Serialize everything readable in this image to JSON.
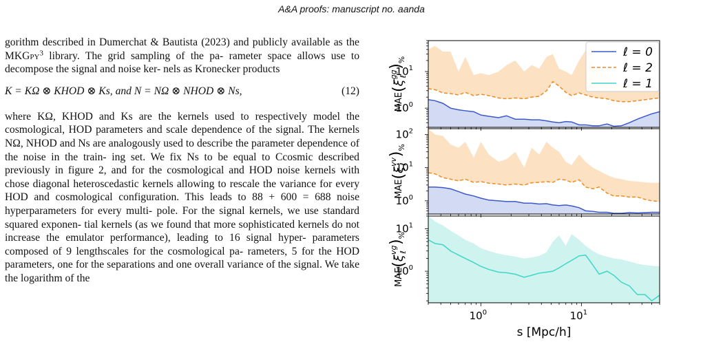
{
  "header": {
    "title": "A&A proofs:",
    "subtitle": "manuscript no. aanda"
  },
  "paragraph1": {
    "line1": "gorithm described in Dumerchat & Bautista (2023) and publicly",
    "line2_pre": "available as the ",
    "lib_name": "MKGpy",
    "footnote": "3",
    "line2_post": " library. The grid sampling of the pa-",
    "line3": "rameter space allows use to decompose the signal and noise ker-",
    "line4": "nels as Kronecker products"
  },
  "equation": {
    "text": "K = KΩ ⊗ KHOD ⊗ Ks,  and  N = NΩ ⊗ NHOD ⊗ Ns,",
    "number": "(12)"
  },
  "paragraph2": [
    "where KΩ, KHOD and Ks are the kernels used to respectively",
    "model the cosmological, HOD parameters and scale dependence",
    "of the signal. The kernels NΩ, NHOD and Ns are analogously used",
    "to describe the parameter dependence of the noise in the train-",
    "ing set. We fix Ns to be equal to Ccosmic described previously in",
    "figure 2, and for the cosmological and HOD noise kernels with",
    "chose diagonal heteroscedastic kernels allowing to rescale the",
    "variance for every HOD and cosmological configuration. This",
    "leads to 88 + 600 = 688 noise hyperparameters for every multi-",
    "pole. For the signal kernels, we use standard squared exponen-",
    "tial kernels (as we found that more sophisticated kernels do not",
    "increase the emulator performance), leading to 16 signal hyper-",
    "parameters composed of 9 lengthscales for the cosmological pa-",
    "rameters, 5 for the HOD parameters, one for the separations and",
    "one overall variance of the signal. We take the logarithm of the"
  ],
  "chart_data": [
    {
      "type": "line",
      "panel": "top",
      "ylabel": "MAE(ξℓ^gg)%",
      "yscale": "log",
      "xscale": "log",
      "xlim": [
        0.3,
        60
      ],
      "ylim": [
        0.3,
        70
      ],
      "yticks": [
        "10^0",
        "10^1"
      ],
      "legend": {
        "placement": "top-right",
        "entries": [
          "ℓ = 0",
          "ℓ = 2",
          "ℓ = 1"
        ]
      },
      "x": [
        0.3,
        0.35,
        0.42,
        0.5,
        0.6,
        0.7,
        0.85,
        1.0,
        1.2,
        1.5,
        1.8,
        2.2,
        2.7,
        3.2,
        3.8,
        4.5,
        5.2,
        6,
        7,
        8,
        9.5,
        11,
        13,
        15,
        18,
        21,
        25,
        30,
        36,
        43,
        50,
        60
      ],
      "series": [
        {
          "name": "ℓ = 0",
          "color": "#3a58c8",
          "style": "solid",
          "values": [
            1.7,
            1.6,
            1.35,
            1.0,
            0.9,
            0.85,
            0.8,
            0.65,
            0.6,
            0.55,
            0.62,
            0.5,
            0.5,
            0.48,
            0.48,
            0.45,
            0.42,
            0.4,
            0.43,
            0.42,
            0.35,
            0.35,
            0.33,
            0.33,
            0.37,
            0.32,
            0.33,
            0.4,
            0.5,
            0.6,
            0.7,
            0.8
          ]
        },
        {
          "name": "ℓ = 2",
          "color": "#f08a1e",
          "style": "dashed",
          "values": [
            3.4,
            3.2,
            2.6,
            2.5,
            2.3,
            2.7,
            2.2,
            2.4,
            2.2,
            1.9,
            1.8,
            1.9,
            1.8,
            2.0,
            2.1,
            3.0,
            5.3,
            4.0,
            2.7,
            2.2,
            2.6,
            2.3,
            2.0,
            1.9,
            1.8,
            1.6,
            1.5,
            1.5,
            1.6,
            1.7,
            1.8,
            1.9
          ]
        }
      ],
      "bands": [
        {
          "series": "ℓ = 2",
          "color": "#fbdcb8",
          "upper": [
            40,
            50,
            35,
            35,
            10,
            25,
            8,
            9,
            8,
            10,
            15,
            20,
            10,
            15,
            12,
            25,
            30,
            12,
            10,
            8,
            20,
            38,
            15,
            12,
            8,
            5,
            4.5,
            4,
            3.5,
            3.2,
            3,
            2.8
          ]
        },
        {
          "series": "ℓ = 0",
          "color": "#cad3f2",
          "lower": [
            0.3,
            0.3,
            0.3,
            0.3,
            0.3,
            0.3,
            0.3,
            0.3,
            0.3,
            0.3,
            0.3,
            0.3,
            0.3,
            0.3,
            0.3,
            0.3,
            0.3,
            0.3,
            0.3,
            0.3,
            0.3,
            0.3,
            0.3,
            0.3,
            0.3,
            0.3,
            0.3,
            0.3,
            0.3,
            0.3,
            0.3,
            0.3
          ]
        }
      ]
    },
    {
      "type": "line",
      "panel": "middle",
      "ylabel": "MAE(ξℓ^vv)%",
      "yscale": "log",
      "xscale": "log",
      "xlim": [
        0.3,
        60
      ],
      "ylim": [
        0.4,
        150
      ],
      "yticks": [
        "10^0",
        "10^1",
        "10^2"
      ],
      "x": [
        0.3,
        0.35,
        0.42,
        0.5,
        0.6,
        0.7,
        0.85,
        1.0,
        1.2,
        1.5,
        1.8,
        2.2,
        2.7,
        3.2,
        3.8,
        4.5,
        5.2,
        6,
        7,
        8,
        9.5,
        11,
        13,
        15,
        18,
        21,
        25,
        30,
        36,
        43,
        50,
        60
      ],
      "series": [
        {
          "name": "ℓ = 0",
          "color": "#3a58c8",
          "style": "solid",
          "values": [
            2.6,
            2.6,
            2.5,
            2.3,
            1.9,
            1.6,
            1.4,
            1.2,
            1.05,
            1.0,
            0.95,
            0.95,
            0.85,
            0.85,
            0.8,
            0.82,
            0.75,
            0.72,
            0.75,
            0.7,
            0.62,
            0.5,
            0.48,
            0.45,
            0.45,
            0.42,
            0.42,
            0.44,
            0.43,
            0.44,
            0.45,
            0.45
          ]
        },
        {
          "name": "ℓ = 2",
          "color": "#f08a1e",
          "style": "dashed",
          "values": [
            7.0,
            6.5,
            5.0,
            4.5,
            4.0,
            4.5,
            3.6,
            3.8,
            3.4,
            3.2,
            3.0,
            3.2,
            3.0,
            3.5,
            3.6,
            3.8,
            3.6,
            4.5,
            4.2,
            3.6,
            4.3,
            2.6,
            2.3,
            2.6,
            1.7,
            1.4,
            1.4,
            1.3,
            1.3,
            1.1,
            1.0,
            0.95
          ]
        }
      ],
      "bands": [
        {
          "series": "ℓ = 2",
          "color": "#fbdcb8",
          "upper": [
            150,
            100,
            90,
            50,
            40,
            60,
            20,
            60,
            25,
            15,
            18,
            30,
            10,
            40,
            25,
            60,
            40,
            30,
            15,
            12,
            25,
            15,
            10,
            8,
            6,
            5,
            4.5,
            4,
            3.8,
            3.6,
            3.5,
            3.5
          ]
        },
        {
          "series": "ℓ = 0",
          "color": "#cad3f2",
          "lower": [
            0.4,
            0.4,
            0.4,
            0.4,
            0.4,
            0.4,
            0.4,
            0.4,
            0.4,
            0.4,
            0.4,
            0.4,
            0.4,
            0.4,
            0.4,
            0.4,
            0.4,
            0.4,
            0.4,
            0.4,
            0.4,
            0.4,
            0.4,
            0.4,
            0.4,
            0.4,
            0.4,
            0.4,
            0.4,
            0.4,
            0.4,
            0.4
          ]
        }
      ]
    },
    {
      "type": "line",
      "panel": "bottom",
      "ylabel": "MAE(ξℓ^vg)%",
      "xlabel": "s [Mpc/h]",
      "yscale": "log",
      "xscale": "log",
      "xlim": [
        0.3,
        60
      ],
      "ylim": [
        0.18,
        20
      ],
      "yticks": [
        "10^0",
        "10^1"
      ],
      "xticks": [
        "10^0",
        "10^1"
      ],
      "x": [
        0.3,
        0.35,
        0.42,
        0.5,
        0.6,
        0.7,
        0.85,
        1.0,
        1.2,
        1.5,
        1.8,
        2.2,
        2.7,
        3.2,
        3.8,
        4.5,
        5.2,
        6,
        7,
        8,
        9.5,
        11,
        13,
        15,
        18,
        21,
        25,
        30,
        36,
        43,
        50,
        60
      ],
      "series": [
        {
          "name": "ℓ = 1",
          "color": "#3ed6c6",
          "style": "solid",
          "values": [
            5.5,
            4.5,
            4.2,
            3.0,
            2.4,
            2.0,
            1.6,
            1.3,
            1.1,
            0.95,
            0.92,
            0.85,
            0.72,
            0.8,
            0.9,
            0.95,
            1.0,
            1.2,
            1.5,
            1.8,
            2.3,
            2.4,
            1.4,
            0.85,
            1.0,
            0.8,
            0.55,
            0.45,
            0.28,
            0.28,
            0.2,
            0.27
          ]
        }
      ],
      "bands": [
        {
          "series": "ℓ = 1",
          "color": "#c7f1ec",
          "upper": [
            20,
            15,
            12,
            9,
            7,
            5.5,
            4.5,
            3.5,
            3.0,
            2.6,
            2.4,
            2.2,
            2.0,
            2.1,
            2.3,
            2.8,
            5.0,
            7.0,
            4.0,
            7.5,
            5.5,
            4.0,
            3.0,
            2.5,
            2.2,
            2.0,
            1.9,
            1.7,
            1.5,
            1.4,
            1.35,
            1.3
          ],
          "lower_to_axis": true
        }
      ]
    }
  ]
}
